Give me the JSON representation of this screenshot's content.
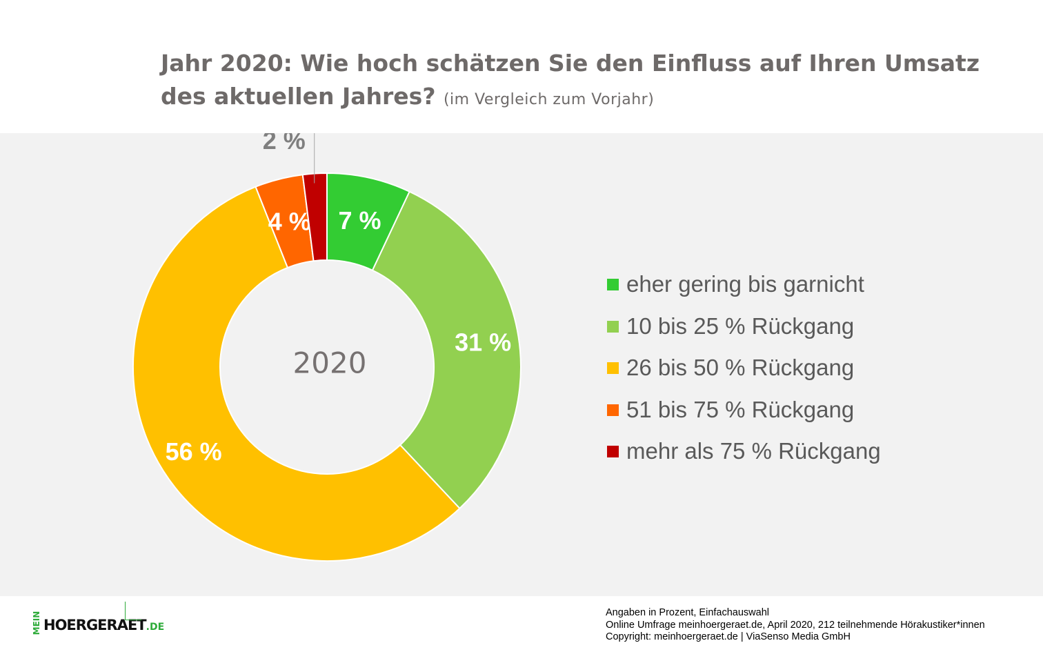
{
  "title": {
    "line1": "Jahr 2020: Wie hoch schätzen Sie den Einfluss auf Ihren Umsatz",
    "line2": "des aktuellen Jahres?",
    "subtitle": "(im Vergleich zum Vorjahr)"
  },
  "chart_data": {
    "type": "donut",
    "center_label": "2020",
    "categories": [
      "eher gering bis garnicht",
      "10 bis 25 % Rückgang",
      "26 bis 50 % Rückgang",
      "51 bis 75 % Rückgang",
      "mehr als 75 % Rückgang"
    ],
    "values": [
      7,
      31,
      56,
      4,
      2
    ],
    "value_labels": [
      "7 %",
      "31 %",
      "56 %",
      "4 %",
      "2 %"
    ],
    "colors": [
      "#33cc33",
      "#92d050",
      "#ffc000",
      "#ff6600",
      "#c00000"
    ],
    "unit": "%",
    "legend_position": "right"
  },
  "footer": {
    "logo": {
      "mein": "MEIN",
      "main": "HOERGERAET",
      "tld": ".DE"
    },
    "notes": [
      "Angaben in Prozent,  Einfachauswahl",
      "Online Umfrage meinhoergeraet.de, April 2020, 212 teilnehmende  Hörakustiker*innen",
      "Copyright:  meinhoergeraet.de | ViaSenso Media GmbH"
    ]
  }
}
